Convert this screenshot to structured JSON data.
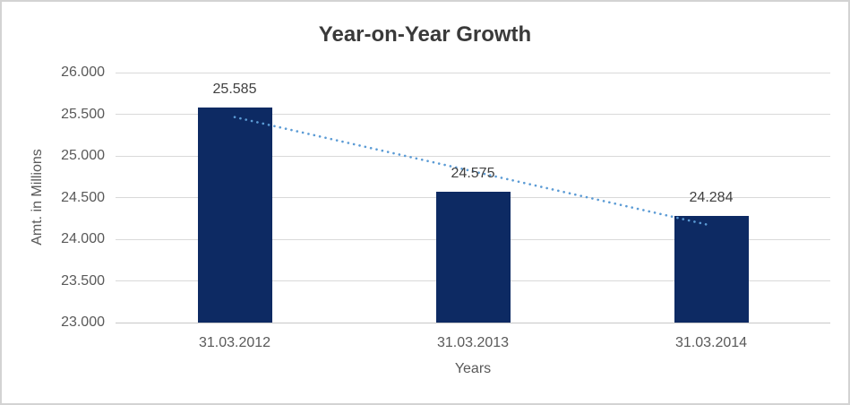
{
  "window": {
    "background": "#ffffff",
    "border_color": "#d3d3d3"
  },
  "chart_data": {
    "type": "bar",
    "title": "Year-on-Year Growth",
    "xlabel": "Years",
    "ylabel": "Amt. in Millions",
    "categories": [
      "31.03.2012",
      "31.03.2013",
      "31.03.2014"
    ],
    "values": [
      25585,
      24575,
      24284
    ],
    "value_labels": [
      "25.585",
      "24.575",
      "24.284"
    ],
    "yticks": [
      {
        "value": 26000,
        "label": "26.000"
      },
      {
        "value": 25500,
        "label": "25.500"
      },
      {
        "value": 25000,
        "label": "25.000"
      },
      {
        "value": 24500,
        "label": "24.500"
      },
      {
        "value": 24000,
        "label": "24.000"
      },
      {
        "value": 23500,
        "label": "23.500"
      },
      {
        "value": 23000,
        "label": "23.000"
      }
    ],
    "ylim": [
      23000,
      26000
    ],
    "grid": true,
    "legend": "none",
    "trendline": {
      "type": "linear",
      "style": "dotted",
      "color": "#5B9BD5"
    },
    "colors": {
      "bar": "#0D2A63",
      "gridline": "#D9D9D9",
      "axis_line": "#C8C8C8",
      "title_text": "#3A3A3A",
      "axis_text": "#595959",
      "data_label_text": "#404040"
    }
  }
}
